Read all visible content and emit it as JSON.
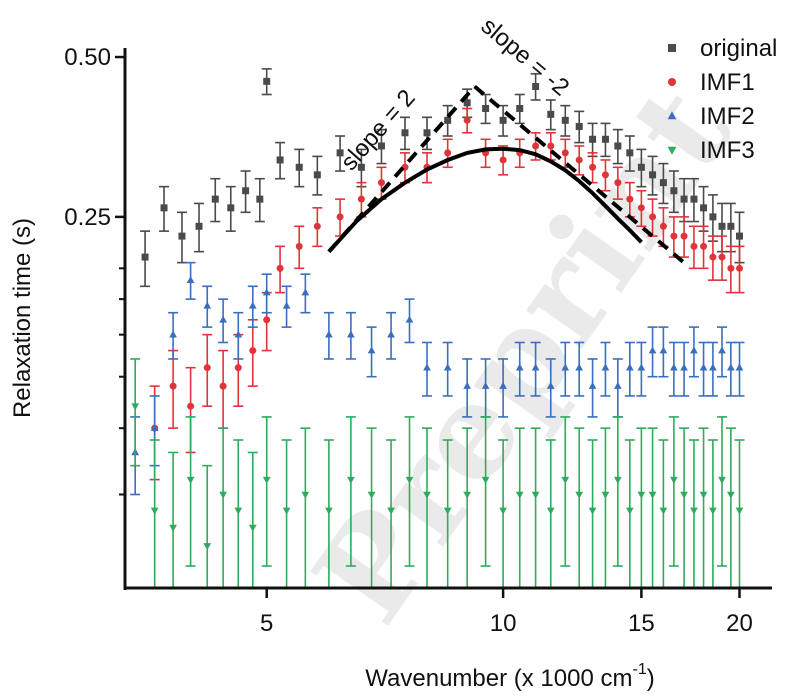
{
  "chart_data": {
    "type": "scatter",
    "xscale": "log",
    "yscale": "log",
    "xlim": [
      3.3,
      22
    ],
    "ylim": [
      0.05,
      0.52
    ],
    "xlabel": "Wavenumber (x 1000 cm",
    "xlabel_sup": "-1",
    "xlabel_end": ")",
    "ylabel": "Relaxation time (s)",
    "xticks": [
      5,
      10,
      15,
      20
    ],
    "xtick_labels": [
      "5",
      "10",
      "15",
      "20"
    ],
    "yticks_labeled": [
      0.25,
      0.5
    ],
    "ytick_labels": [
      "0.25",
      "0.50"
    ],
    "yticks_minor": [
      0.075,
      0.1,
      0.125,
      0.15,
      0.175,
      0.2
    ],
    "legend_position": "top-right",
    "series": [
      {
        "name": "original",
        "color": "#4a4a4a",
        "marker": "square",
        "x": [
          3.5,
          3.7,
          3.9,
          4.1,
          4.3,
          4.5,
          4.7,
          4.9,
          5.0,
          5.2,
          5.5,
          5.8,
          6.2,
          6.6,
          7.0,
          7.5,
          8.0,
          8.5,
          9.0,
          9.5,
          10.0,
          10.5,
          11.0,
          11.5,
          12.0,
          12.5,
          13.0,
          13.5,
          14.0,
          14.5,
          15.0,
          15.5,
          16.0,
          16.5,
          17.0,
          17.5,
          18.0,
          18.5,
          19.0,
          19.5,
          20.0
        ],
        "y": [
          0.21,
          0.26,
          0.23,
          0.24,
          0.27,
          0.26,
          0.28,
          0.27,
          0.45,
          0.32,
          0.31,
          0.3,
          0.33,
          0.31,
          0.34,
          0.36,
          0.36,
          0.38,
          0.41,
          0.4,
          0.38,
          0.4,
          0.44,
          0.39,
          0.38,
          0.37,
          0.35,
          0.35,
          0.34,
          0.33,
          0.31,
          0.3,
          0.29,
          0.28,
          0.27,
          0.27,
          0.26,
          0.25,
          0.24,
          0.24,
          0.23
        ],
        "err": 0.025
      },
      {
        "name": "IMF1",
        "color": "#e0343a",
        "marker": "circle",
        "x": [
          3.6,
          3.8,
          4.0,
          4.2,
          4.4,
          4.6,
          4.8,
          5.0,
          5.2,
          5.5,
          5.8,
          6.2,
          6.6,
          7.0,
          7.5,
          8.0,
          8.5,
          9.0,
          9.5,
          10.0,
          10.5,
          11.0,
          11.5,
          12.0,
          12.5,
          13.0,
          13.5,
          14.0,
          14.5,
          15.0,
          15.5,
          16.0,
          16.5,
          17.0,
          17.5,
          18.0,
          18.5,
          19.0,
          19.5,
          20.0
        ],
        "y": [
          0.1,
          0.12,
          0.11,
          0.13,
          0.12,
          0.13,
          0.14,
          0.16,
          0.2,
          0.22,
          0.24,
          0.25,
          0.27,
          0.29,
          0.31,
          0.31,
          0.33,
          0.38,
          0.33,
          0.32,
          0.33,
          0.34,
          0.34,
          0.33,
          0.32,
          0.31,
          0.3,
          0.29,
          0.27,
          0.26,
          0.25,
          0.24,
          0.23,
          0.23,
          0.22,
          0.22,
          0.21,
          0.21,
          0.2,
          0.2
        ],
        "err": 0.02
      },
      {
        "name": "IMF2",
        "color": "#3a6fbf",
        "marker": "triangle-up",
        "x": [
          3.4,
          3.6,
          3.8,
          4.0,
          4.2,
          4.4,
          4.6,
          4.8,
          5.0,
          5.3,
          5.6,
          6.0,
          6.4,
          6.8,
          7.2,
          7.6,
          8.0,
          8.5,
          9.0,
          9.5,
          10.0,
          10.5,
          11.0,
          11.5,
          12.0,
          12.5,
          13.0,
          13.5,
          14.0,
          14.5,
          15.0,
          15.5,
          16.0,
          16.5,
          17.0,
          17.5,
          18.0,
          18.5,
          19.0,
          19.5,
          20.0
        ],
        "y": [
          0.09,
          0.1,
          0.15,
          0.19,
          0.17,
          0.16,
          0.15,
          0.17,
          0.18,
          0.17,
          0.18,
          0.15,
          0.15,
          0.14,
          0.15,
          0.16,
          0.13,
          0.13,
          0.12,
          0.12,
          0.12,
          0.13,
          0.13,
          0.12,
          0.13,
          0.13,
          0.12,
          0.13,
          0.12,
          0.13,
          0.13,
          0.14,
          0.14,
          0.13,
          0.13,
          0.14,
          0.13,
          0.13,
          0.14,
          0.13,
          0.13
        ],
        "err": 0.015
      },
      {
        "name": "IMF3",
        "color": "#2eab5c",
        "marker": "triangle-down",
        "x": [
          3.4,
          3.6,
          3.8,
          4.0,
          4.2,
          4.4,
          4.6,
          4.8,
          5.0,
          5.3,
          5.6,
          6.0,
          6.4,
          6.8,
          7.2,
          7.6,
          8.0,
          8.5,
          9.0,
          9.5,
          10.0,
          10.5,
          11.0,
          11.5,
          12.0,
          12.5,
          13.0,
          13.5,
          14.0,
          14.5,
          15.0,
          15.5,
          16.0,
          16.5,
          17.0,
          17.5,
          18.0,
          18.5,
          19.0,
          19.5,
          20.0
        ],
        "y": [
          0.11,
          0.07,
          0.065,
          0.08,
          0.06,
          0.075,
          0.07,
          0.065,
          0.08,
          0.07,
          0.075,
          0.07,
          0.08,
          0.075,
          0.07,
          0.08,
          0.075,
          0.07,
          0.075,
          0.08,
          0.07,
          0.075,
          0.075,
          0.07,
          0.08,
          0.075,
          0.07,
          0.075,
          0.08,
          0.07,
          0.075,
          0.075,
          0.07,
          0.08,
          0.075,
          0.07,
          0.075,
          0.07,
          0.08,
          0.075,
          0.07
        ],
        "err": 0.025
      }
    ],
    "fit_curve": {
      "style": "solid",
      "x": [
        6.0,
        6.5,
        7.0,
        7.5,
        8.0,
        8.5,
        9.0,
        9.5,
        10.0,
        10.5,
        11.0,
        11.5,
        12.0,
        12.5,
        13.0,
        13.5,
        14.0,
        14.5,
        15.0
      ],
      "y": [
        0.215,
        0.245,
        0.27,
        0.29,
        0.307,
        0.32,
        0.33,
        0.335,
        0.336,
        0.334,
        0.328,
        0.318,
        0.306,
        0.292,
        0.277,
        0.262,
        0.248,
        0.236,
        0.224
      ]
    },
    "slope_lines": [
      {
        "label": "slope = 2",
        "x": [
          6.0,
          9.2
        ],
        "y": [
          0.215,
          0.44
        ]
      },
      {
        "label": "slope = -2",
        "x": [
          9.2,
          17.0
        ],
        "y": [
          0.44,
          0.205
        ]
      }
    ],
    "watermark": "Preprint"
  }
}
